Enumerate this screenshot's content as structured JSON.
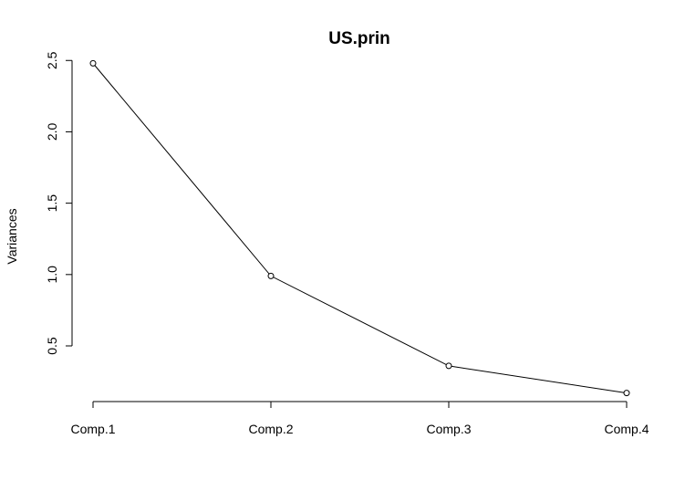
{
  "chart_data": {
    "type": "line",
    "title": "US.prin",
    "xlabel": "",
    "ylabel": "Variances",
    "categories": [
      "Comp.1",
      "Comp.2",
      "Comp.3",
      "Comp.4"
    ],
    "series": [
      {
        "values": [
          2.48,
          0.99,
          0.36,
          0.17
        ]
      }
    ],
    "ylim": [
      0.11,
      2.54
    ],
    "yticks": [
      0.5,
      1.0,
      1.5,
      2.0,
      2.5
    ],
    "ytick_labels": [
      "0.5",
      "1.0",
      "1.5",
      "2.0",
      "2.5"
    ],
    "markers": "open-circle",
    "grid": false,
    "line_color": "#000000"
  }
}
